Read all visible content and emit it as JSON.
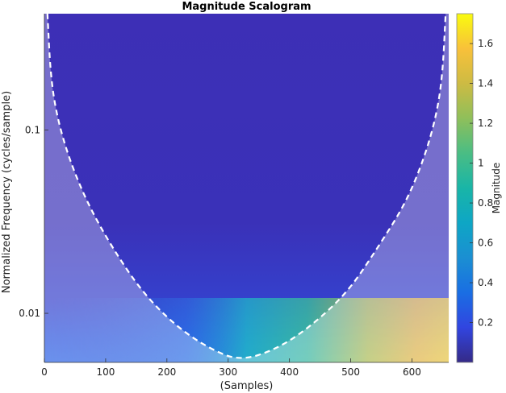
{
  "chart_data": {
    "type": "heatmap",
    "title": "Magnitude Scalogram",
    "xlabel": "(Samples)",
    "ylabel": "Normalized Frequency  (cycles/sample)",
    "colorbar_label": "Magnitude",
    "x_range": [
      0,
      660
    ],
    "y_range": [
      0.0054,
      0.43
    ],
    "y_scale": "log",
    "x_ticks": [
      "0",
      "100",
      "200",
      "300",
      "400",
      "500",
      "600"
    ],
    "x_tick_values": [
      0,
      100,
      200,
      300,
      400,
      500,
      600
    ],
    "y_ticks": [
      "0.01",
      "0.1"
    ],
    "y_tick_values": [
      0.01,
      0.1
    ],
    "colorbar_range": [
      0,
      1.75
    ],
    "colorbar_ticks": [
      "0.2",
      "0.4",
      "0.6",
      "0.8",
      "1",
      "1.2",
      "1.4",
      "1.6"
    ],
    "colorbar_tick_values": [
      0.2,
      0.4,
      0.6,
      0.8,
      1.0,
      1.2,
      1.4,
      1.6
    ],
    "colormap": "parula",
    "cone_of_influence": [
      {
        "x": 5,
        "y": 0.43
      },
      {
        "x": 10,
        "y": 0.2
      },
      {
        "x": 20,
        "y": 0.12
      },
      {
        "x": 40,
        "y": 0.07
      },
      {
        "x": 70,
        "y": 0.04
      },
      {
        "x": 110,
        "y": 0.023
      },
      {
        "x": 160,
        "y": 0.013
      },
      {
        "x": 215,
        "y": 0.0085
      },
      {
        "x": 270,
        "y": 0.0064
      },
      {
        "x": 320,
        "y": 0.0055
      },
      {
        "x": 380,
        "y": 0.0064
      },
      {
        "x": 435,
        "y": 0.0085
      },
      {
        "x": 495,
        "y": 0.013
      },
      {
        "x": 545,
        "y": 0.023
      },
      {
        "x": 590,
        "y": 0.04
      },
      {
        "x": 620,
        "y": 0.07
      },
      {
        "x": 640,
        "y": 0.12
      },
      {
        "x": 650,
        "y": 0.2
      },
      {
        "x": 655,
        "y": 0.43
      }
    ]
  }
}
